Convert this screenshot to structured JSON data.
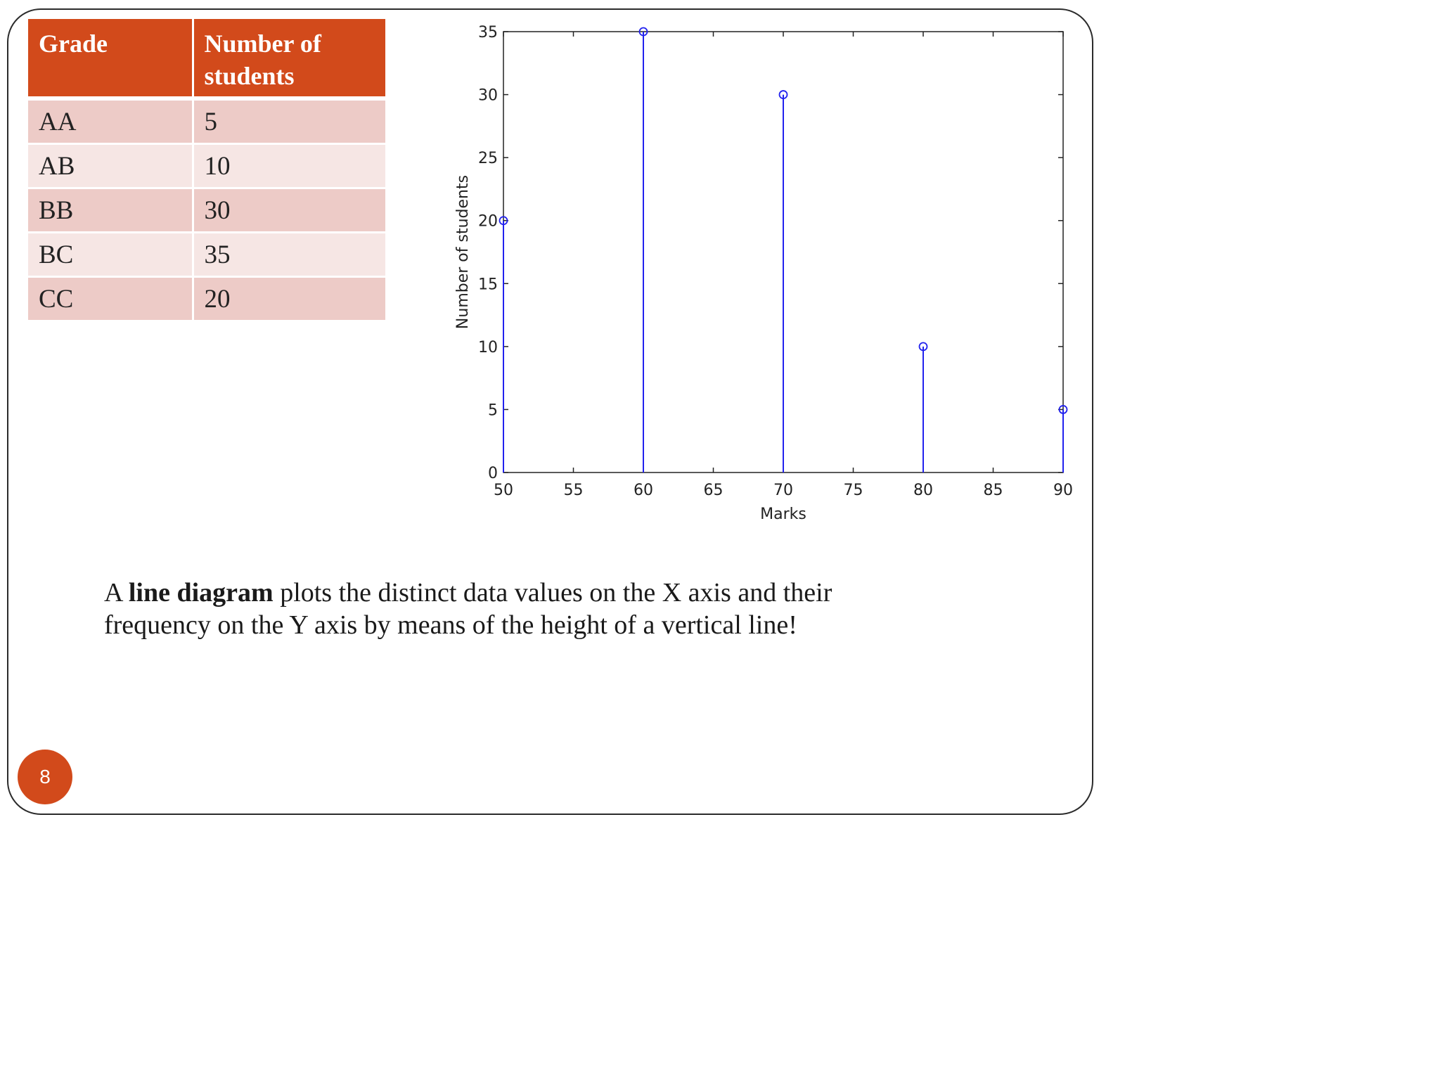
{
  "table": {
    "headers": [
      "Grade",
      "Number of students"
    ],
    "rows": [
      [
        "AA",
        "5"
      ],
      [
        "AB",
        "10"
      ],
      [
        "BB",
        "30"
      ],
      [
        "BC",
        "35"
      ],
      [
        "CC",
        "20"
      ]
    ],
    "header_color": "#d24a1b"
  },
  "chart_data": {
    "type": "stem",
    "x": [
      50,
      60,
      70,
      80,
      90
    ],
    "y": [
      20,
      35,
      30,
      10,
      5
    ],
    "xlabel": "Marks",
    "ylabel": "Number of students",
    "xlim": [
      50,
      90
    ],
    "ylim": [
      0,
      35
    ],
    "xticks": [
      50,
      55,
      60,
      65,
      70,
      75,
      80,
      85,
      90
    ],
    "yticks": [
      0,
      5,
      10,
      15,
      20,
      25,
      30,
      35
    ],
    "grid": false,
    "line_color": "#2222ee"
  },
  "caption": {
    "prefix": "A ",
    "bold": "line diagram",
    "rest": " plots the distinct data values on the X axis and their frequency on the Y axis by means of the height of a vertical line!"
  },
  "page_number": "8"
}
